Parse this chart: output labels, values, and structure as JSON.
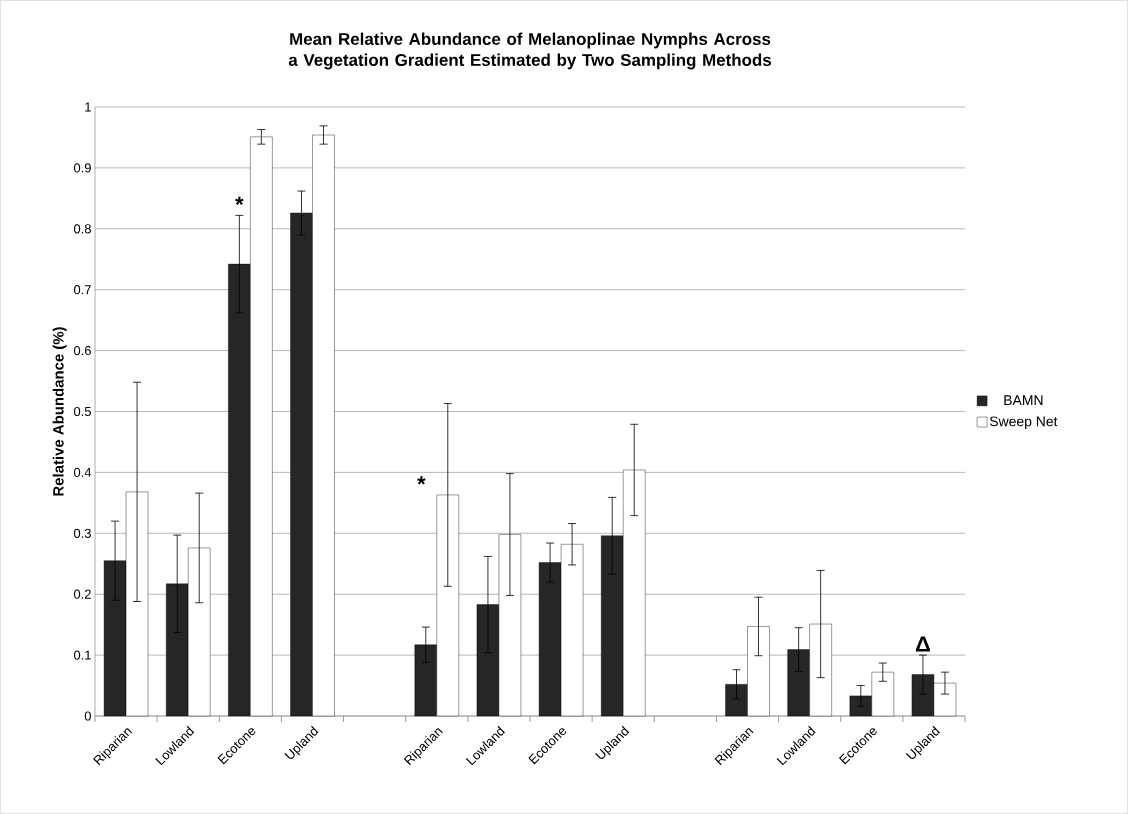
{
  "chart_data": {
    "type": "bar",
    "title": "Mean Relative Abundance of Melanoplinae Nymphs Across a Vegetation Gradient Estimated by Two Sampling Methods",
    "ylabel": "Relative Abundance (%)",
    "categories": [
      "Riparian",
      "Lowland",
      "Ecotone",
      "Upland",
      null,
      "Riparian",
      "Lowland",
      "Ecotone",
      "Upland",
      null,
      "Riparian",
      "Lowland",
      "Ecotone",
      "Upland"
    ],
    "series": [
      {
        "name": "BAMN",
        "color": "#262626",
        "values": [
          0.255,
          0.217,
          0.742,
          0.826,
          null,
          0.117,
          0.183,
          0.252,
          0.296,
          null,
          0.052,
          0.109,
          0.033,
          0.068
        ],
        "errors": [
          0.065,
          0.08,
          0.08,
          0.036,
          null,
          0.029,
          0.079,
          0.032,
          0.063,
          null,
          0.024,
          0.036,
          0.017,
          0.032
        ]
      },
      {
        "name": "Sweep Net",
        "color": "#ffffff",
        "values": [
          0.368,
          0.276,
          0.951,
          0.954,
          null,
          0.363,
          0.298,
          0.282,
          0.404,
          null,
          0.147,
          0.151,
          0.072,
          0.054
        ],
        "errors": [
          0.18,
          0.09,
          0.012,
          0.015,
          null,
          0.15,
          0.1,
          0.034,
          0.075,
          null,
          0.048,
          0.088,
          0.015,
          0.018
        ]
      }
    ],
    "ylim": [
      0,
      1
    ],
    "yticks": [
      0,
      0.1,
      0.2,
      0.3,
      0.4,
      0.5,
      0.6,
      0.7,
      0.8,
      0.9,
      1
    ],
    "grid": "y",
    "legend": "right",
    "annotations": [
      "*",
      "*",
      "Δ"
    ]
  }
}
